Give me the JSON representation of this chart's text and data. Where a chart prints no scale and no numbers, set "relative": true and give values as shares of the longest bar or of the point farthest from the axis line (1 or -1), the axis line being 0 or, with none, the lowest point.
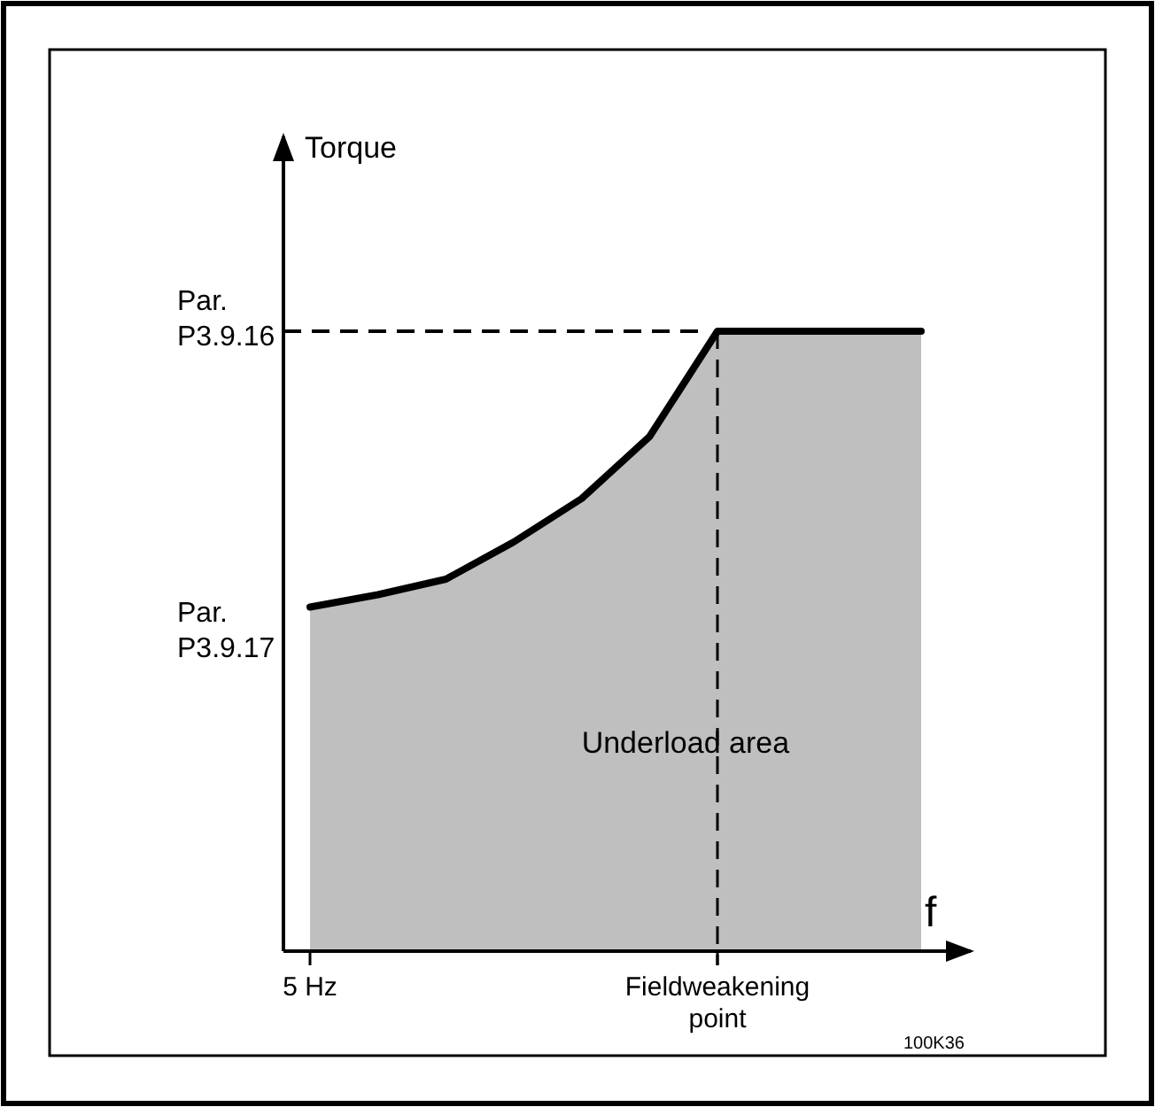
{
  "chart_data": {
    "type": "area",
    "relative": true,
    "xlabel": "f",
    "categories": [
      "5 Hz",
      null,
      null,
      null,
      null,
      null,
      "Fieldweakening point",
      null,
      null,
      null
    ],
    "series": [
      {
        "color": "#000000",
        "values": [
          0.555,
          0.575,
          0.6,
          0.66,
          0.73,
          0.83,
          1,
          1,
          1,
          1
        ]
      }
    ],
    "ref_lines": [
      {
        "axis": "y",
        "value": 1,
        "label": "Par. P3.9.16",
        "line_style": "dashed",
        "color": "#000000"
      },
      {
        "axis": "x",
        "value": "Fieldweakening point",
        "line_style": "dashed",
        "color": "#000000"
      }
    ],
    "annotations": [
      "Par. P3.9.17",
      "Underload area",
      "100K36",
      "Torque"
    ]
  }
}
